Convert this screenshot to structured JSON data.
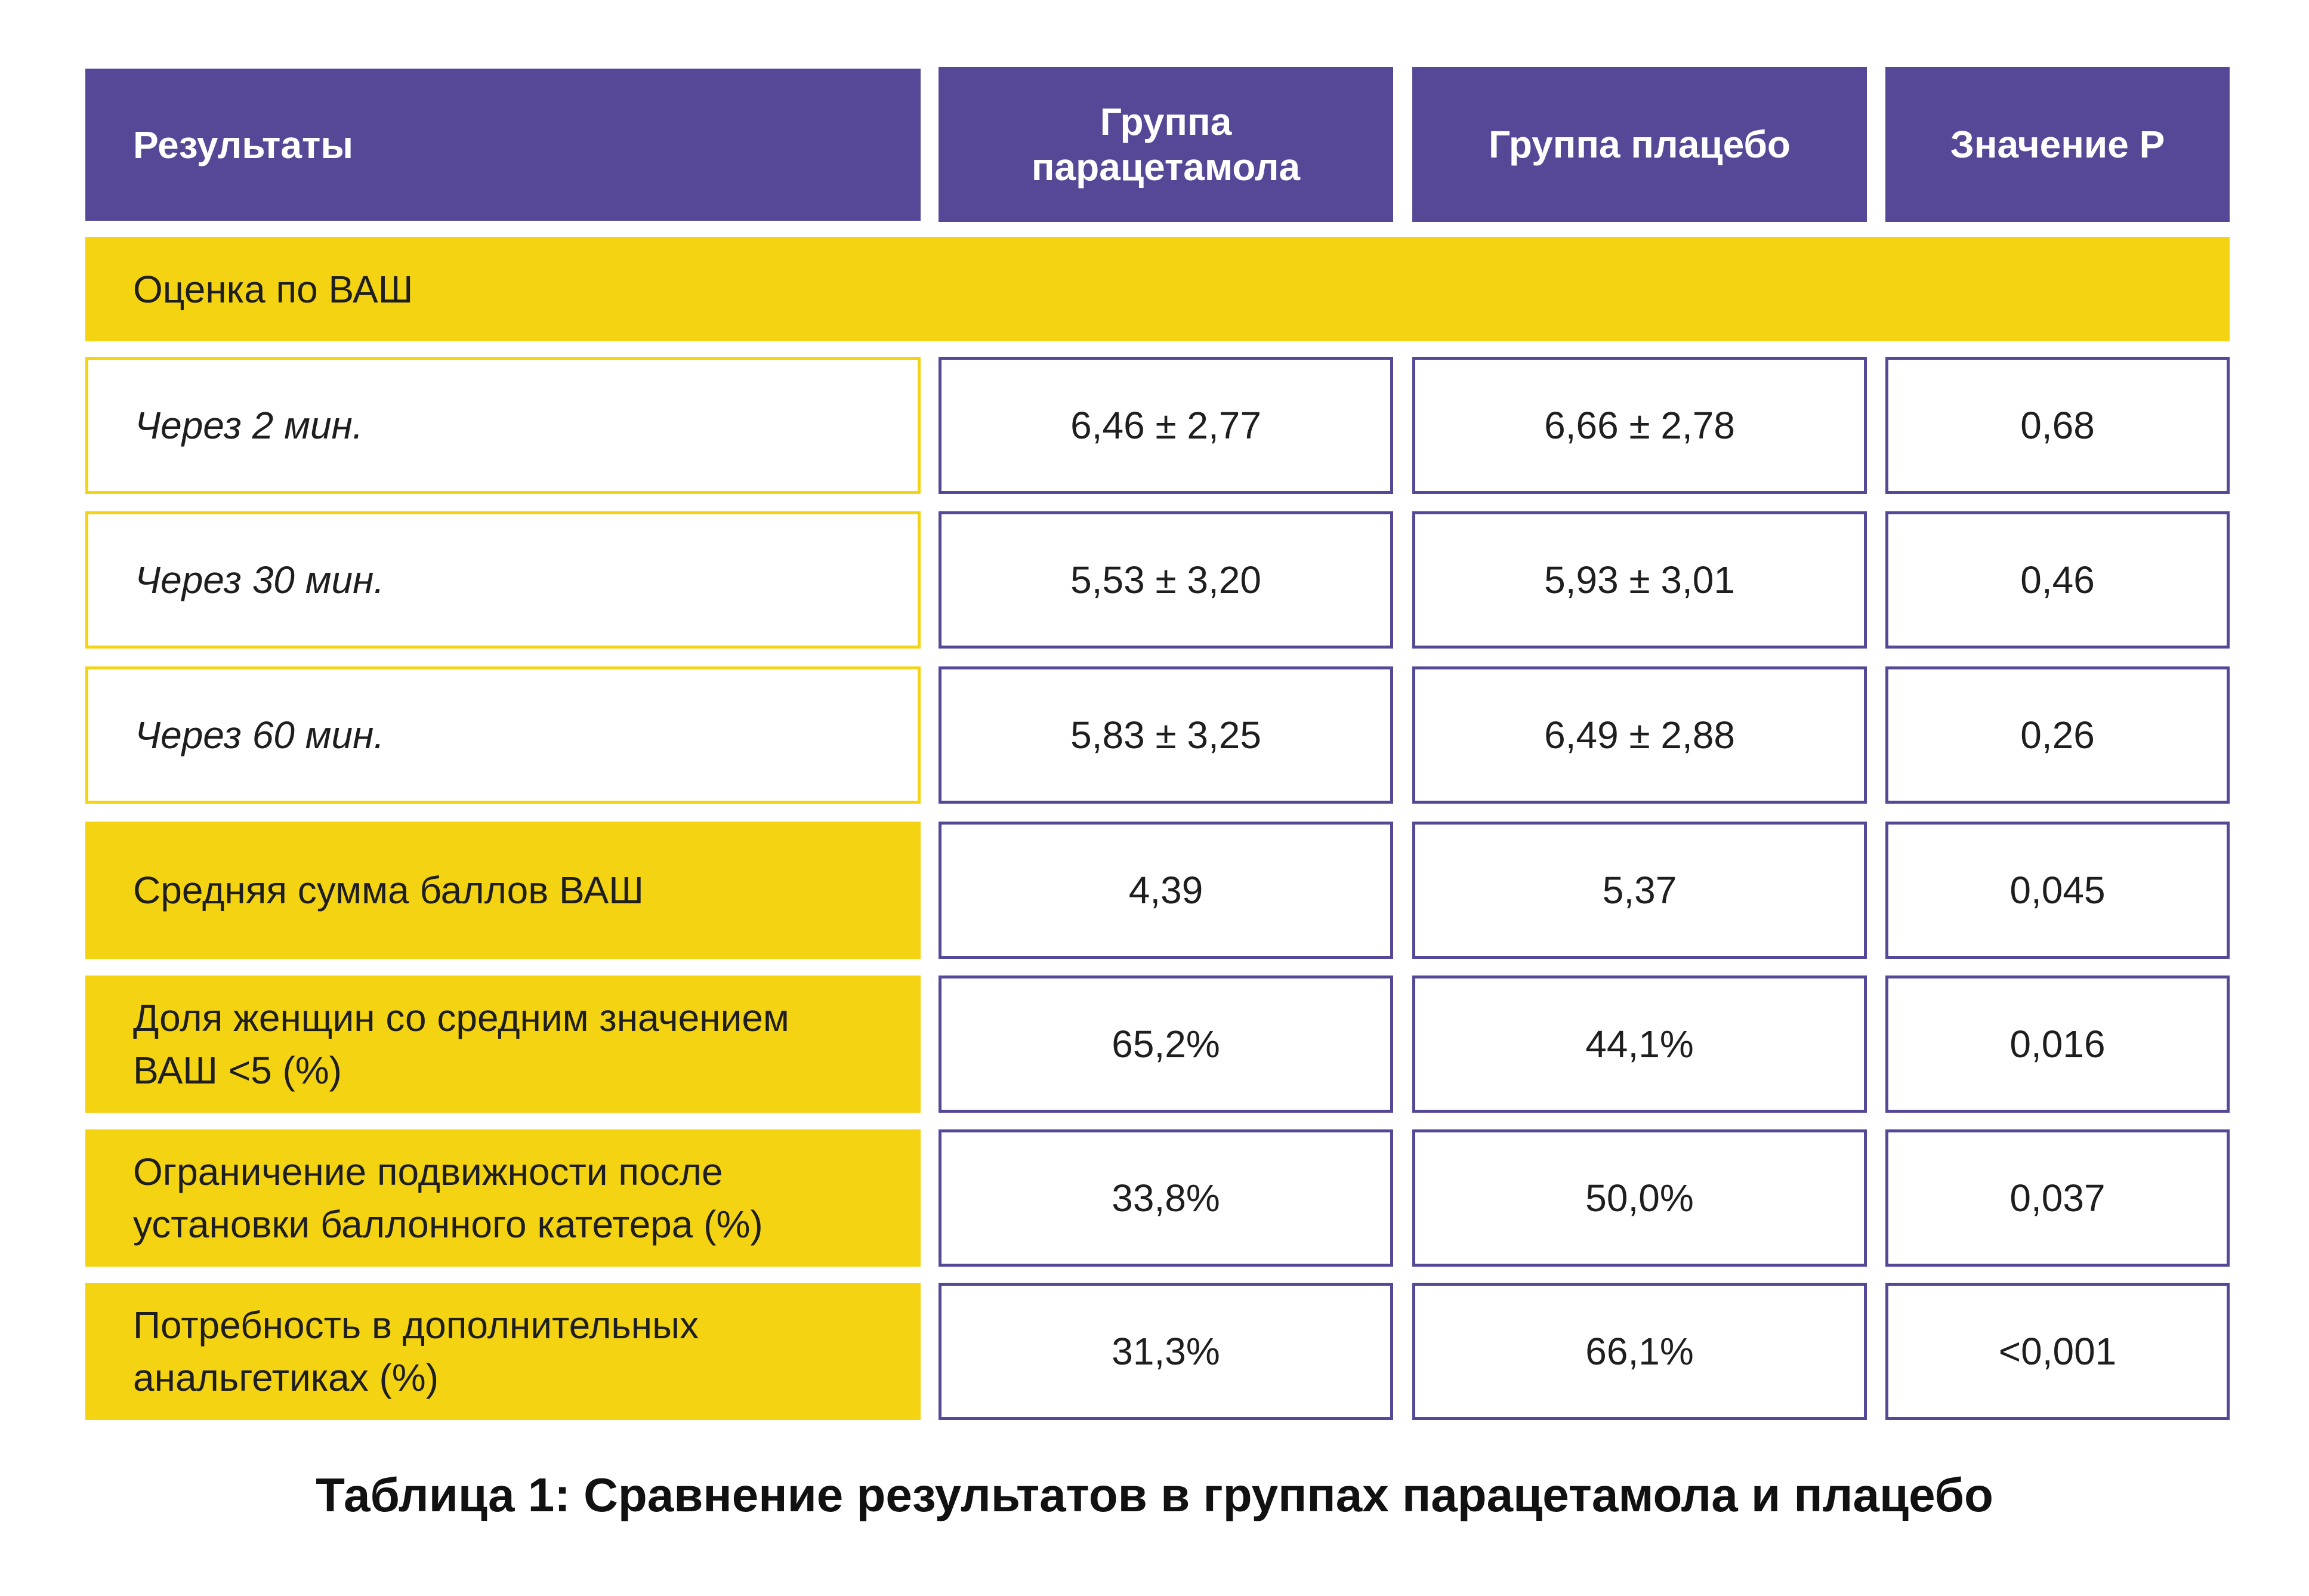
{
  "header": {
    "col1": "Результаты",
    "col2_line1": "Группа",
    "col2_line2": "парацетамола",
    "col3": "Группа плацебо",
    "col4": "Значение Р"
  },
  "section_label": "Оценка по ВАШ",
  "rows": [
    {
      "label": "Через 2 мин.",
      "paracetamol": "6,46 ± 2,77",
      "placebo": "6,66 ± 2,78",
      "p": "0,68"
    },
    {
      "label": "Через 30 мин.",
      "paracetamol": "5,53 ± 3,20",
      "placebo": "5,93 ± 3,01",
      "p": "0,46"
    },
    {
      "label": "Через 60 мин.",
      "paracetamol": "5,83 ± 3,25",
      "placebo": "6,49 ± 2,88",
      "p": "0,26"
    },
    {
      "label": "Средняя сумма баллов ВАШ",
      "paracetamol": "4,39",
      "placebo": "5,37",
      "p": "0,045"
    },
    {
      "label_line1": "Доля женщин со средним значением",
      "label_line2": "ВАШ <5 (%)",
      "paracetamol": "65,2%",
      "placebo": "44,1%",
      "p": "0,016"
    },
    {
      "label_line1": "Ограничение подвижности после",
      "label_line2": "установки баллонного катетера (%)",
      "paracetamol": "33,8%",
      "placebo": "50,0%",
      "p": "0,037"
    },
    {
      "label_line1": "Потребность в дополнительных",
      "label_line2": "анальгетиках (%)",
      "paracetamol": "31,3%",
      "placebo": "66,1%",
      "p": "<0,001"
    }
  ],
  "caption": "Таблица 1: Сравнение результатов в группах парацетамола и плацебо",
  "colors": {
    "header_bg": "#564897",
    "highlight_bg": "#f3d312",
    "cell_border": "#564897"
  }
}
